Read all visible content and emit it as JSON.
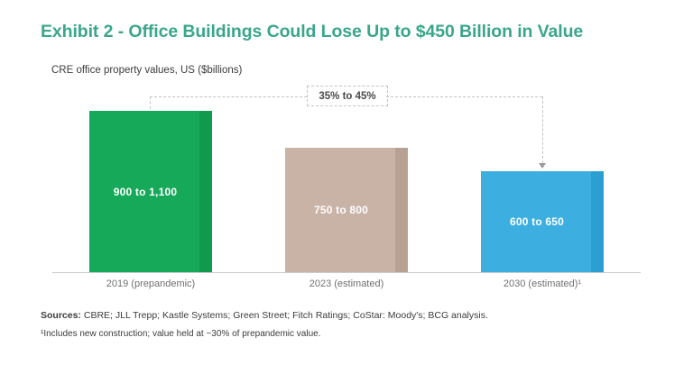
{
  "exhibit": {
    "title": "Exhibit 2 - Office Buildings Could Lose Up to $450 Billion in Value",
    "subtitle": "CRE office property values, US ($billions)"
  },
  "chart_data": {
    "type": "bar",
    "title": "CRE office property values, US ($billions)",
    "categories": [
      "2019 (prepandemic)",
      "2023 (estimated)",
      "2030 (estimated)¹"
    ],
    "values": [
      1000,
      775,
      625
    ],
    "value_ranges": [
      [
        900,
        1100
      ],
      [
        750,
        800
      ],
      [
        600,
        650
      ]
    ],
    "bar_labels": [
      "900 to 1,100",
      "750 to 800",
      "600 to 650"
    ],
    "bar_colors": [
      "#17a95a",
      "#c9b2a6",
      "#3cafe0"
    ],
    "bar_edge_colors": [
      "#109a4e",
      "#b7a094",
      "#2b9fd2"
    ],
    "ylim": [
      0,
      1120
    ],
    "grid": false,
    "legend": false,
    "annotation": {
      "label": "35% to 45%",
      "meaning": "decline from 2019 (prepandemic) to 2030 (estimated)",
      "from_category": "2019 (prepandemic)",
      "to_category": "2030 (estimated)¹"
    },
    "xlabel": "",
    "ylabel": ""
  },
  "footer": {
    "sources_label": "Sources:",
    "sources_text": " CBRE; JLL Trepp; Kastle Systems; Green Street; Fitch Ratings; CoStar: Moody's; BCG analysis.",
    "footnote": "¹Includes new construction; value held at ~30% of prepandemic value."
  },
  "colors": {
    "title_accent": "#3aa68c",
    "axis_line": "#cbcbcb",
    "dashed_connector": "#c2c2c2",
    "bar_label_text": "#ffffff",
    "category_label_text": "#707070",
    "footer_text": "#3c3c3c"
  }
}
